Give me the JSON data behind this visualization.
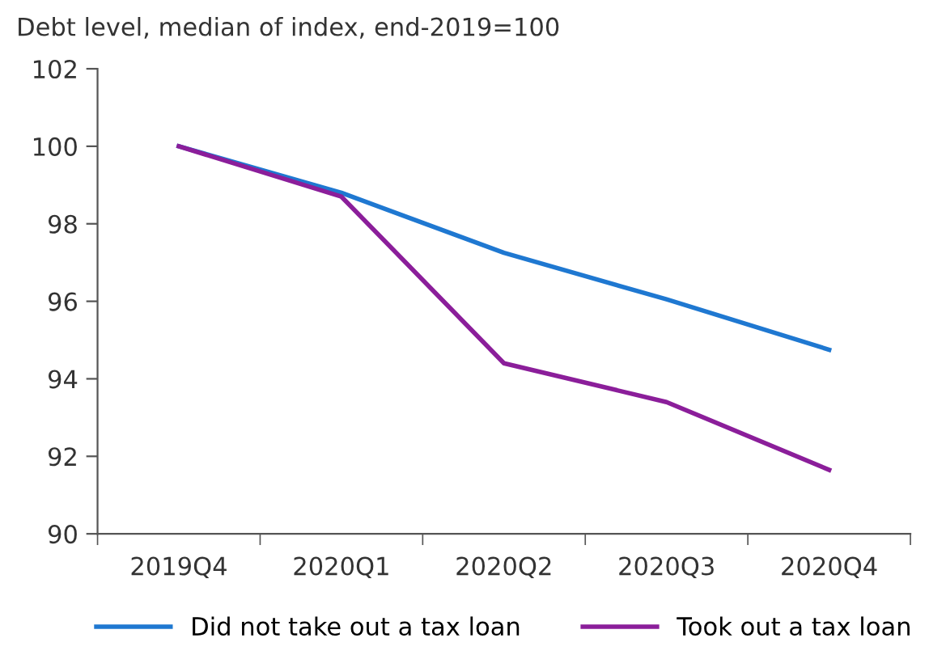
{
  "chart_data": {
    "type": "line",
    "ylabel": "Debt level, median of index, end-2019=100",
    "categories": [
      "2019Q4",
      "2020Q1",
      "2020Q2",
      "2020Q3",
      "2020Q4"
    ],
    "series": [
      {
        "name": "Did not take out a tax loan",
        "color": "#1f78d1",
        "values": [
          100,
          98.8,
          97.25,
          96.05,
          94.75
        ]
      },
      {
        "name": "Took out a tax loan",
        "color": "#8b1e9a",
        "values": [
          100,
          98.7,
          94.4,
          93.4,
          91.65
        ]
      }
    ],
    "ylim": [
      90,
      102
    ],
    "yticks": [
      90,
      92,
      94,
      96,
      98,
      100,
      102
    ],
    "grid": false,
    "legend": "bottom",
    "marker": "none",
    "line_style": "solid"
  }
}
